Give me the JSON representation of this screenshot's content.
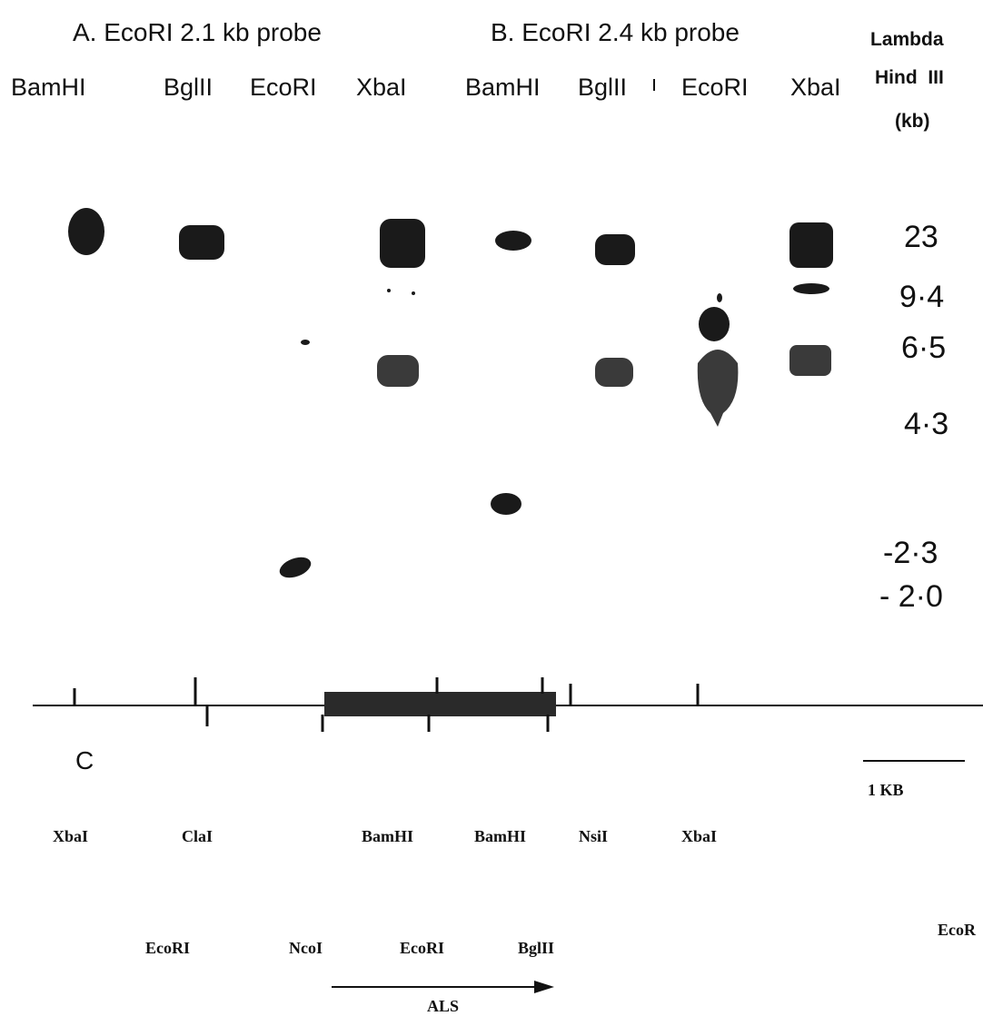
{
  "panel_a": {
    "title": "A. EcoRI 2.1 kb probe",
    "lanes": [
      "BamHI",
      "BglII",
      "EcoRI",
      "XbaI"
    ]
  },
  "panel_b": {
    "title": "B.  EcoRI 2.4 kb probe",
    "lanes": [
      "BamHI",
      "BglII",
      "EcoRI",
      "XbaI"
    ]
  },
  "marker": {
    "header": [
      "Lambda",
      "Hind  III",
      "(kb)"
    ],
    "sizes": [
      "23",
      "9·4",
      "6·5",
      "4·3",
      "-2·3",
      "- 2·0"
    ]
  },
  "panel_c": {
    "label": "C",
    "scale": "1 KB",
    "top_sites": [
      "XbaI",
      "ClaI",
      "BamHI",
      "BamHI",
      "NsiI",
      "XbaI"
    ],
    "bottom_sites": [
      "EcoRI",
      "NcoI",
      "EcoRI",
      "BglII",
      "EcoR"
    ],
    "gene": "ALS"
  }
}
